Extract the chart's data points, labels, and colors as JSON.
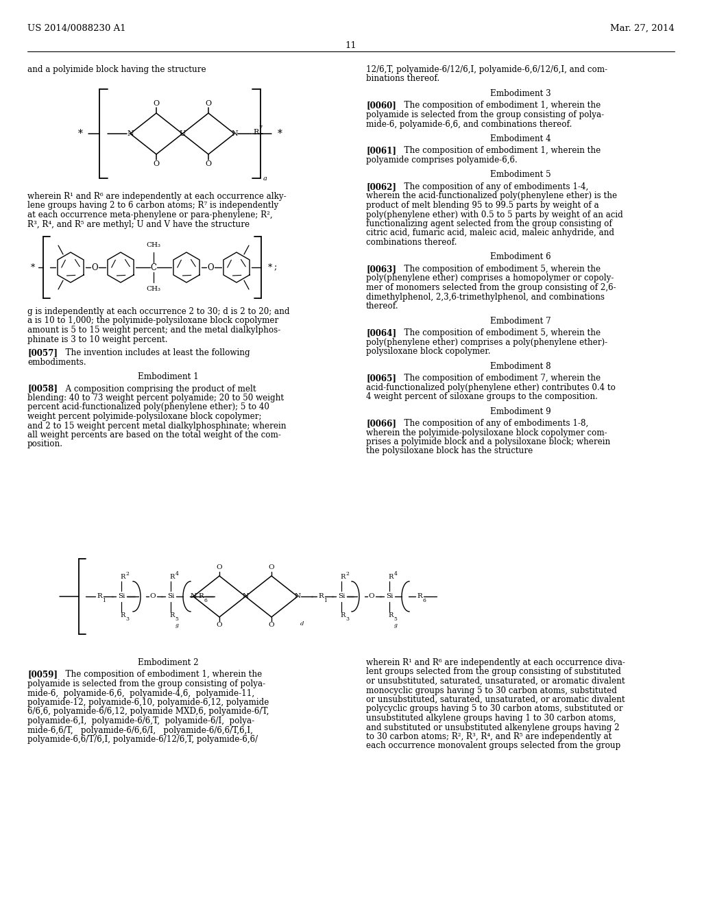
{
  "background_color": "#ffffff",
  "header_left": "US 2014/0088230 A1",
  "header_right": "Mar. 27, 2014",
  "page_number": "11",
  "font_size_body": 9.0,
  "font_size_header": 9.5
}
